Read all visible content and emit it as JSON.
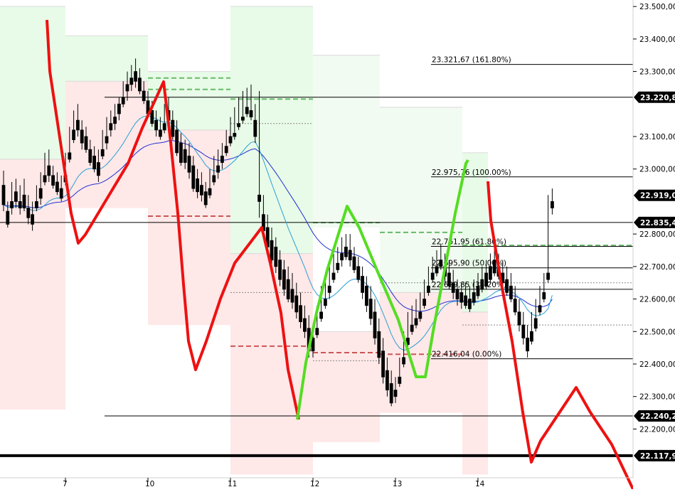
{
  "chart_data": {
    "type": "candlestick",
    "title": "",
    "xlabel": "",
    "ylabel": "",
    "ylim": [
      22050,
      23520
    ],
    "x_ticks": [
      {
        "label": "7",
        "slot": 15
      },
      {
        "label": "10",
        "slot": 35
      },
      {
        "label": "11",
        "slot": 55
      },
      {
        "label": "12",
        "slot": 75
      },
      {
        "label": "13",
        "slot": 95
      },
      {
        "label": "14",
        "slot": 115
      }
    ],
    "y_ticks": [
      {
        "label": "23.500,00",
        "value": 23500
      },
      {
        "label": "23.400,00",
        "value": 23400
      },
      {
        "label": "23.300,00",
        "value": 23300
      },
      {
        "label": "23.100,00",
        "value": 23100
      },
      {
        "label": "23.000,00",
        "value": 23000
      },
      {
        "label": "22.800,00",
        "value": 22800
      },
      {
        "label": "22.700,00",
        "value": 22700
      },
      {
        "label": "22.600,00",
        "value": 22600
      },
      {
        "label": "22.500,00",
        "value": 22500
      },
      {
        "label": "22.400,00",
        "value": 22400
      },
      {
        "label": "22.300,00",
        "value": 22300
      },
      {
        "label": "22.200,00",
        "value": 22200
      }
    ],
    "price_tags": [
      {
        "label": "23.220,83",
        "value": 23220.83
      },
      {
        "label": "22.919,02",
        "value": 22919.02
      },
      {
        "label": "22.835,48",
        "value": 22835.48
      },
      {
        "label": "22.240,23",
        "value": 22240.23
      },
      {
        "label": "22.117,96",
        "value": 22117.96
      }
    ],
    "fibonacci": [
      {
        "label": "23.321,67 (161.80%)",
        "value": 23321.67
      },
      {
        "label": "22.975,76 (100.00%)",
        "value": 22975.76
      },
      {
        "label": "22.761,95 (61.80%)",
        "value": 22761.95
      },
      {
        "label": "22.695,90 (50.00%)",
        "value": 22695.9
      },
      {
        "label": "22.629,85 (38.20%)",
        "value": 22629.85
      },
      {
        "label": "22.416,04 (0.00%)",
        "value": 22416.04
      }
    ],
    "candles": [
      [
        22950,
        22995,
        22890,
        22870
      ],
      [
        22870,
        22900,
        22830,
        22820
      ],
      [
        22900,
        22960,
        22880,
        22860
      ],
      [
        22930,
        22970,
        22900,
        22880
      ],
      [
        22900,
        22950,
        22880,
        22860
      ],
      [
        22920,
        22970,
        22880,
        22870
      ],
      [
        22880,
        22920,
        22850,
        22830
      ],
      [
        22860,
        22900,
        22830,
        22810
      ],
      [
        22900,
        22950,
        22880,
        22870
      ],
      [
        22940,
        22990,
        22910,
        22890
      ],
      [
        22980,
        23050,
        22960,
        22950
      ],
      [
        23010,
        23060,
        22980,
        22960
      ],
      [
        22980,
        23010,
        22950,
        22940
      ],
      [
        22960,
        22990,
        22930,
        22920
      ],
      [
        22940,
        22980,
        22910,
        22900
      ],
      [
        22980,
        23050,
        22960,
        22950
      ],
      [
        23050,
        23130,
        23030,
        23020
      ],
      [
        23120,
        23180,
        23090,
        23080
      ],
      [
        23150,
        23200,
        23120,
        23100
      ],
      [
        23120,
        23150,
        23080,
        23060
      ],
      [
        23100,
        23130,
        23060,
        23050
      ],
      [
        23060,
        23090,
        23020,
        23010
      ],
      [
        23040,
        23070,
        23000,
        22990
      ],
      [
        23020,
        23060,
        22980,
        22960
      ],
      [
        23060,
        23120,
        23040,
        23030
      ],
      [
        23100,
        23160,
        23080,
        23060
      ],
      [
        23140,
        23180,
        23120,
        23100
      ],
      [
        23160,
        23200,
        23140,
        23120
      ],
      [
        23200,
        23220,
        23170,
        23150
      ],
      [
        23220,
        23270,
        23200,
        23190
      ],
      [
        23260,
        23300,
        23240,
        23210
      ],
      [
        23280,
        23320,
        23260,
        23240
      ],
      [
        23300,
        23340,
        23270,
        23250
      ],
      [
        23280,
        23310,
        23240,
        23230
      ],
      [
        23240,
        23270,
        23210,
        23200
      ],
      [
        23210,
        23240,
        23170,
        23160
      ],
      [
        23180,
        23210,
        23140,
        23130
      ],
      [
        23150,
        23180,
        23120,
        23100
      ],
      [
        23120,
        23160,
        23100,
        23090
      ],
      [
        23140,
        23200,
        23120,
        23110
      ],
      [
        23180,
        23220,
        23150,
        23130
      ],
      [
        23150,
        23180,
        23100,
        23090
      ],
      [
        23120,
        23150,
        23050,
        23040
      ],
      [
        23080,
        23110,
        23020,
        23010
      ],
      [
        23060,
        23090,
        23020,
        23000
      ],
      [
        23040,
        23080,
        22990,
        22970
      ],
      [
        23010,
        23040,
        22940,
        22930
      ],
      [
        22970,
        23000,
        22930,
        22910
      ],
      [
        22950,
        22990,
        22920,
        22900
      ],
      [
        22930,
        22960,
        22890,
        22880
      ],
      [
        22940,
        23000,
        22920,
        22910
      ],
      [
        22980,
        23040,
        22960,
        22950
      ],
      [
        23010,
        23060,
        22990,
        22970
      ],
      [
        23040,
        23080,
        23020,
        23000
      ],
      [
        23070,
        23120,
        23050,
        23040
      ],
      [
        23100,
        23160,
        23080,
        23070
      ],
      [
        23110,
        23190,
        23100,
        23090
      ],
      [
        23140,
        23220,
        23130,
        23120
      ],
      [
        23160,
        23240,
        23150,
        23140
      ],
      [
        23190,
        23250,
        23170,
        23160
      ],
      [
        23180,
        23260,
        23160,
        23150
      ],
      [
        23150,
        23200,
        23100,
        23080
      ],
      [
        22920,
        23240,
        22900,
        22850
      ],
      [
        22860,
        22920,
        22810,
        22790
      ],
      [
        22820,
        22860,
        22760,
        22740
      ],
      [
        22780,
        22820,
        22720,
        22700
      ],
      [
        22760,
        22790,
        22700,
        22680
      ],
      [
        22720,
        22750,
        22660,
        22640
      ],
      [
        22690,
        22720,
        22630,
        22610
      ],
      [
        22660,
        22700,
        22600,
        22590
      ],
      [
        22630,
        22680,
        22590,
        22570
      ],
      [
        22610,
        22650,
        22560,
        22540
      ],
      [
        22580,
        22620,
        22530,
        22510
      ],
      [
        22540,
        22580,
        22500,
        22480
      ],
      [
        22510,
        22550,
        22440,
        22420
      ],
      [
        22480,
        22520,
        22440,
        22420
      ],
      [
        22510,
        22580,
        22490,
        22480
      ],
      [
        22560,
        22640,
        22540,
        22530
      ],
      [
        22600,
        22660,
        22580,
        22570
      ],
      [
        22640,
        22700,
        22620,
        22600
      ],
      [
        22680,
        22740,
        22660,
        22650
      ],
      [
        22710,
        22760,
        22690,
        22680
      ],
      [
        22740,
        22790,
        22720,
        22700
      ],
      [
        22760,
        22800,
        22730,
        22720
      ],
      [
        22750,
        22800,
        22720,
        22700
      ],
      [
        22730,
        22760,
        22690,
        22680
      ],
      [
        22700,
        22730,
        22660,
        22650
      ],
      [
        22670,
        22700,
        22620,
        22600
      ],
      [
        22640,
        22670,
        22580,
        22560
      ],
      [
        22600,
        22640,
        22540,
        22520
      ],
      [
        22560,
        22600,
        22480,
        22460
      ],
      [
        22500,
        22540,
        22420,
        22400
      ],
      [
        22440,
        22480,
        22360,
        22340
      ],
      [
        22380,
        22420,
        22320,
        22300
      ],
      [
        22340,
        22380,
        22280,
        22270
      ],
      [
        22320,
        22360,
        22300,
        22280
      ],
      [
        22360,
        22420,
        22340,
        22330
      ],
      [
        22420,
        22500,
        22400,
        22390
      ],
      [
        22480,
        22560,
        22460,
        22450
      ],
      [
        22520,
        22580,
        22500,
        22490
      ],
      [
        22540,
        22600,
        22520,
        22510
      ],
      [
        22560,
        22620,
        22540,
        22530
      ],
      [
        22600,
        22660,
        22580,
        22570
      ],
      [
        22640,
        22700,
        22620,
        22610
      ],
      [
        22680,
        22730,
        22660,
        22650
      ],
      [
        22700,
        22750,
        22680,
        22670
      ],
      [
        22720,
        22770,
        22700,
        22690
      ],
      [
        22700,
        22740,
        22670,
        22650
      ],
      [
        22680,
        22720,
        22640,
        22630
      ],
      [
        22650,
        22690,
        22620,
        22600
      ],
      [
        22630,
        22660,
        22600,
        22580
      ],
      [
        22620,
        22650,
        22590,
        22570
      ],
      [
        22610,
        22650,
        22580,
        22570
      ],
      [
        22600,
        22640,
        22570,
        22560
      ],
      [
        22620,
        22660,
        22590,
        22580
      ],
      [
        22640,
        22680,
        22610,
        22600
      ],
      [
        22660,
        22700,
        22630,
        22620
      ],
      [
        22680,
        22720,
        22640,
        22630
      ],
      [
        22700,
        22740,
        22660,
        22650
      ],
      [
        22720,
        22760,
        22680,
        22670
      ],
      [
        22700,
        22740,
        22670,
        22660
      ],
      [
        22680,
        22720,
        22650,
        22640
      ],
      [
        22660,
        22700,
        22620,
        22610
      ],
      [
        22640,
        22680,
        22600,
        22590
      ],
      [
        22600,
        22640,
        22560,
        22550
      ],
      [
        22560,
        22600,
        22520,
        22500
      ],
      [
        22520,
        22560,
        22480,
        22460
      ],
      [
        22480,
        22520,
        22440,
        22420
      ],
      [
        22500,
        22560,
        22470,
        22460
      ],
      [
        22540,
        22600,
        22510,
        22500
      ],
      [
        22580,
        22640,
        22560,
        22550
      ],
      [
        22620,
        22680,
        22600,
        22590
      ],
      [
        22680,
        22920,
        22660,
        22650
      ],
      [
        22900,
        22940,
        22880,
        22860
      ]
    ],
    "ema_fast": [],
    "ema_slow": []
  }
}
